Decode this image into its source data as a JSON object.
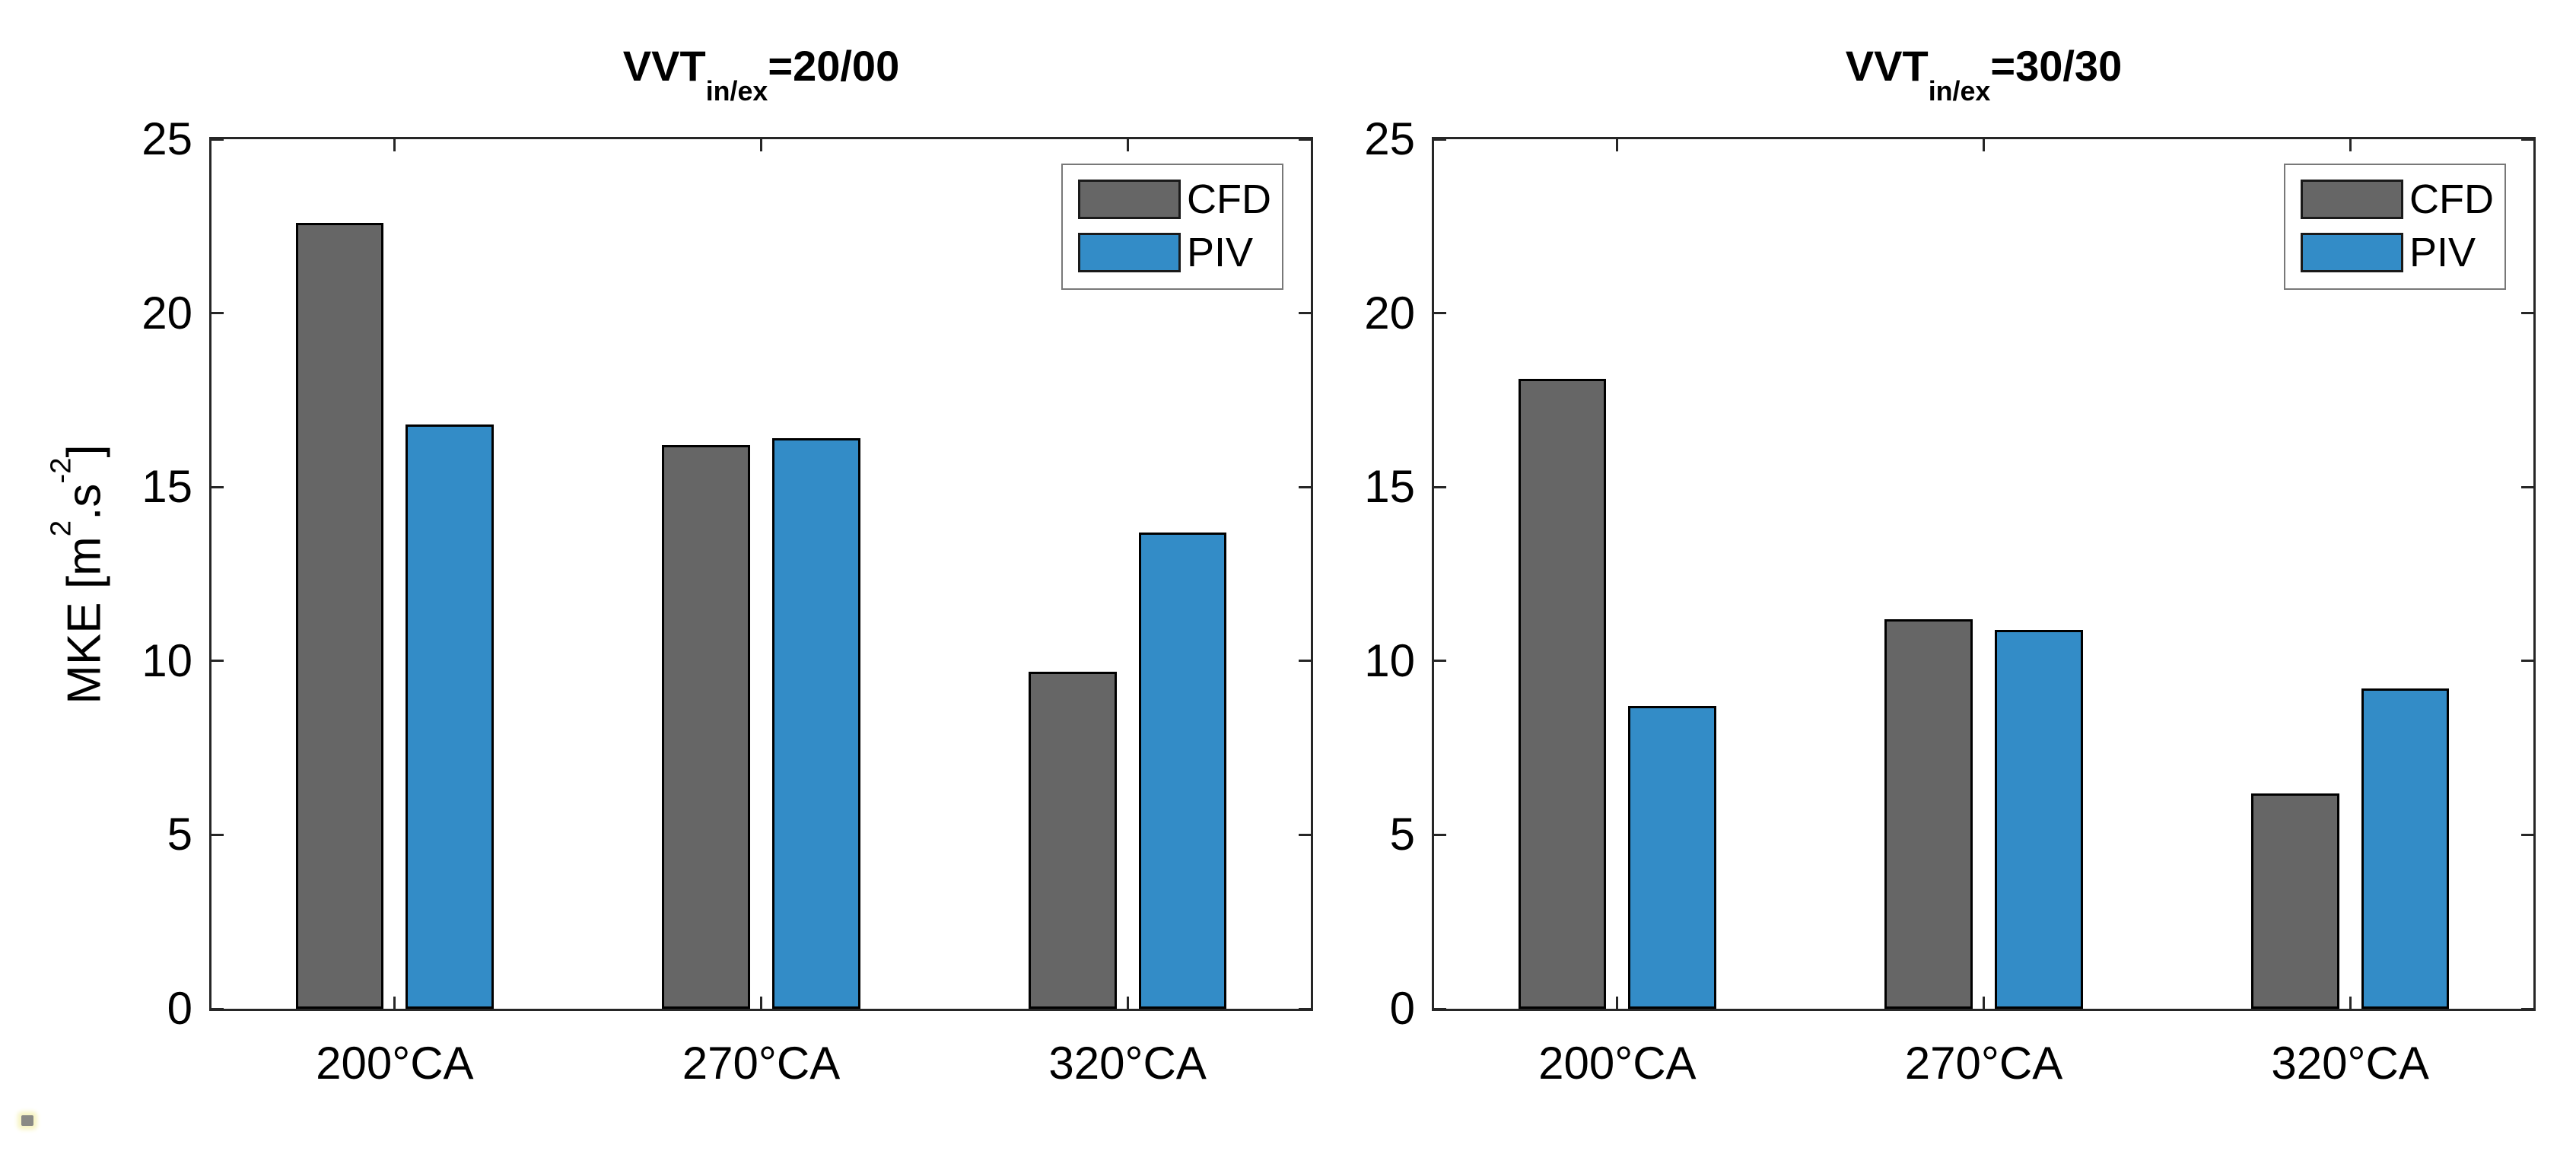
{
  "figure": {
    "background": "#ffffff",
    "axis_color": "#262626",
    "text_color": "#000000",
    "ylabel": "MKE [m^2.s^-2]",
    "ylabel_parts": {
      "pre": "MKE [m",
      "sup1": "2",
      "mid": ".s",
      "sup2": "-2",
      "post": "]"
    }
  },
  "legend": {
    "items": [
      "CFD",
      "PIV"
    ],
    "position": "top-right"
  },
  "chart_data": [
    {
      "type": "bar",
      "title": "VVT_in/ex=20/00",
      "title_parts": {
        "base": "VVT",
        "sub": "in/ex",
        "eq": "=20/00"
      },
      "categories": [
        "200°CA",
        "270°CA",
        "320°CA"
      ],
      "series": [
        {
          "name": "CFD",
          "color": "#666666",
          "values": [
            22.6,
            16.2,
            9.7
          ]
        },
        {
          "name": "PIV",
          "color": "#338cc7",
          "values": [
            16.8,
            16.4,
            13.7
          ]
        }
      ],
      "xlabel": "",
      "ylabel": "MKE [m^2.s^-2]",
      "ylim": [
        0,
        25
      ],
      "yticks": [
        0,
        5,
        10,
        15,
        20,
        25
      ],
      "grid": false,
      "legend_position": "top-right"
    },
    {
      "type": "bar",
      "title": "VVT_in/ex=30/30",
      "title_parts": {
        "base": "VVT",
        "sub": "in/ex",
        "eq": "=30/30"
      },
      "categories": [
        "200°CA",
        "270°CA",
        "320°CA"
      ],
      "series": [
        {
          "name": "CFD",
          "color": "#666666",
          "values": [
            18.1,
            11.2,
            6.2
          ]
        },
        {
          "name": "PIV",
          "color": "#338cc7",
          "values": [
            8.7,
            10.9,
            9.2
          ]
        }
      ],
      "xlabel": "",
      "ylabel": "",
      "ylim": [
        0,
        25
      ],
      "yticks": [
        0,
        5,
        10,
        15,
        20,
        25
      ],
      "grid": false,
      "legend_position": "top-right"
    }
  ]
}
